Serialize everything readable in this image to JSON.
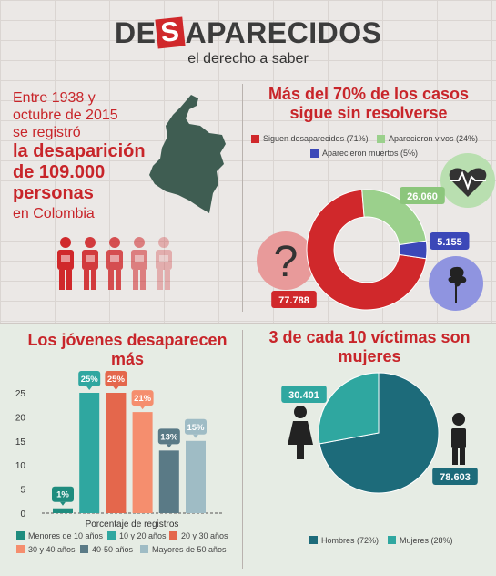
{
  "header": {
    "logo_before": "DE",
    "logo_s": "S",
    "logo_after": "APARECIDOS",
    "tagline": "el derecho a saber"
  },
  "intro": {
    "line1": "Entre 1938 y",
    "line2": "octubre de 2015",
    "line3": "se registró",
    "big1": "la desaparición",
    "big2": "de 109.000",
    "big3": "personas",
    "line4": "en Colombia"
  },
  "colors": {
    "red": "#d0282b",
    "green": "#9bd08c",
    "blue": "#3b48b8",
    "teal_dark": "#1d6b7a",
    "teal_light": "#2fa7a0",
    "orange": "#e4674c",
    "salmon": "#f58e6e",
    "slate": "#5a7a86",
    "grey_blue": "#9fbcc5"
  },
  "chart_data": [
    {
      "type": "pie",
      "title": "Más del 70% de los casos sigue sin resolverse",
      "donut": true,
      "slices": [
        {
          "name": "Siguen desaparecidos (71%)",
          "value": 77788,
          "label": "77.788",
          "color": "#d0282b"
        },
        {
          "name": "Aparecieron vivos (24%)",
          "value": 26060,
          "label": "26.060",
          "color": "#9bd08c"
        },
        {
          "name": "Aparecieron muertos (5%)",
          "value": 5155,
          "label": "5.155",
          "color": "#3b48b8"
        }
      ]
    },
    {
      "type": "bar",
      "title": "Los jóvenes desaparecen más",
      "xlabel": "Porcentaje de registros",
      "ylim": [
        0,
        25
      ],
      "yticks": [
        "0",
        "5",
        "10",
        "15",
        "20",
        "25"
      ],
      "categories": [
        "Menores de 10 años",
        "10 y 20 años",
        "20 y 30 años",
        "30 y 40 años",
        "40-50 años",
        "Mayores de 50 años"
      ],
      "values": [
        1,
        25,
        25,
        21,
        13,
        15
      ],
      "labels": [
        "1%",
        "25%",
        "25%",
        "21%",
        "13%",
        "15%"
      ],
      "colors": [
        "#1f8c7e",
        "#2fa7a0",
        "#e4674c",
        "#f58e6e",
        "#5a7a86",
        "#9fbcc5"
      ]
    },
    {
      "type": "pie",
      "title": "3 de cada 10 víctimas son mujeres",
      "slices": [
        {
          "name": "Hombres (72%)",
          "value": 78603,
          "label": "78.603",
          "color": "#1d6b7a"
        },
        {
          "name": "Mujeres (28%)",
          "value": 30401,
          "label": "30.401",
          "color": "#2fa7a0"
        }
      ]
    }
  ]
}
